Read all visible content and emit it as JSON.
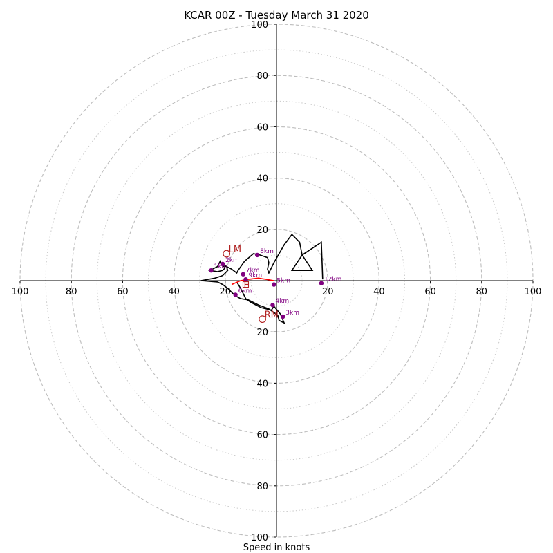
{
  "chart_data": {
    "type": "hodograph",
    "title": "KCAR 00Z - Tuesday March 31 2020",
    "xlabel": "Speed in knots",
    "range": [
      -100,
      100
    ],
    "ring_ticks": [
      20,
      40,
      60,
      80,
      100
    ],
    "x_tick_labels": [
      "100",
      "80",
      "60",
      "40",
      "20",
      "20",
      "40",
      "60",
      "80",
      "100"
    ],
    "y_tick_labels": [
      "100",
      "80",
      "60",
      "40",
      "20",
      "20",
      "40",
      "60",
      "80",
      "100"
    ],
    "major_rings": [
      20,
      40,
      60,
      80,
      100
    ],
    "minor_rings": [
      10,
      30,
      50,
      70,
      90
    ],
    "hodograph_line": {
      "color": "#000000",
      "points": [
        [
          -15.5,
          -0.5
        ],
        [
          -14,
          -3
        ],
        [
          -13,
          -5
        ],
        [
          -12,
          -7
        ],
        [
          -10,
          -8.5
        ],
        [
          -6,
          -10.5
        ],
        [
          -2,
          -11.5
        ],
        [
          -1,
          -10
        ],
        [
          1.5,
          -13
        ],
        [
          3,
          -16.5
        ],
        [
          1,
          -15.5
        ],
        [
          0.5,
          -13.5
        ],
        [
          -3,
          -11
        ],
        [
          -7,
          -9.5
        ],
        [
          -11,
          -7.5
        ],
        [
          -14,
          -7
        ],
        [
          -15,
          -6.5
        ],
        [
          -17,
          -5
        ],
        [
          -19,
          -3
        ],
        [
          -21,
          -1.5
        ],
        [
          -23,
          -0.5
        ],
        [
          -29.5,
          0
        ],
        [
          -24,
          1
        ],
        [
          -21,
          2
        ],
        [
          -20,
          3
        ],
        [
          -19,
          4
        ],
        [
          -19.5,
          5.5
        ],
        [
          -21.5,
          6
        ],
        [
          -22,
          7.5
        ],
        [
          -23,
          5.5
        ],
        [
          -26,
          4
        ],
        [
          -23,
          3.5
        ],
        [
          -21,
          4
        ],
        [
          -20,
          5
        ],
        [
          -21.5,
          6.5
        ],
        [
          -19.5,
          5.5
        ],
        [
          -17.5,
          4.5
        ],
        [
          -15.5,
          3
        ],
        [
          -15,
          4
        ],
        [
          -12.5,
          7.5
        ],
        [
          -9,
          10.5
        ],
        [
          -6.5,
          10
        ],
        [
          -3.5,
          9
        ],
        [
          -3,
          7
        ],
        [
          -3.5,
          4.5
        ],
        [
          -3,
          3
        ],
        [
          -1,
          7
        ],
        [
          3,
          14
        ],
        [
          6,
          18
        ],
        [
          9,
          15
        ],
        [
          10,
          10
        ],
        [
          10,
          10
        ],
        [
          6,
          4
        ],
        [
          14,
          4
        ],
        [
          10,
          10
        ],
        [
          17.5,
          15
        ],
        [
          18,
          0.5
        ]
      ]
    },
    "storm_motion_line": {
      "color": "#ff0000",
      "points": [
        [
          -17.5,
          -1.5
        ],
        [
          -14,
          0
        ],
        [
          -11,
          0.5
        ],
        [
          -7,
          1
        ],
        [
          -1,
          0
        ]
      ]
    },
    "height_markers": [
      {
        "label": "1km",
        "u": -25.5,
        "v": 4
      },
      {
        "label": "2km",
        "u": -21,
        "v": 6.5
      },
      {
        "label": "3km",
        "u": 2.5,
        "v": -14
      },
      {
        "label": "4km",
        "u": -1.5,
        "v": -9.5
      },
      {
        "label": "5km",
        "u": -1,
        "v": -1.5
      },
      {
        "label": "6km",
        "u": -16,
        "v": -5.5
      },
      {
        "label": "7km",
        "u": -13,
        "v": 2.5
      },
      {
        "label": "8km",
        "u": -7.5,
        "v": 10
      },
      {
        "label": "9km",
        "u": -12,
        "v": 0.5
      },
      {
        "label": "12km",
        "u": 17.5,
        "v": -1
      }
    ],
    "storm_motions": [
      {
        "label": "LM",
        "u": -19.5,
        "v": 10.5
      },
      {
        "label": "RM",
        "u": -5.5,
        "v": -15
      }
    ],
    "mean_wind_label": "E",
    "mean_wind": {
      "u": -12,
      "v": -1.5
    }
  }
}
